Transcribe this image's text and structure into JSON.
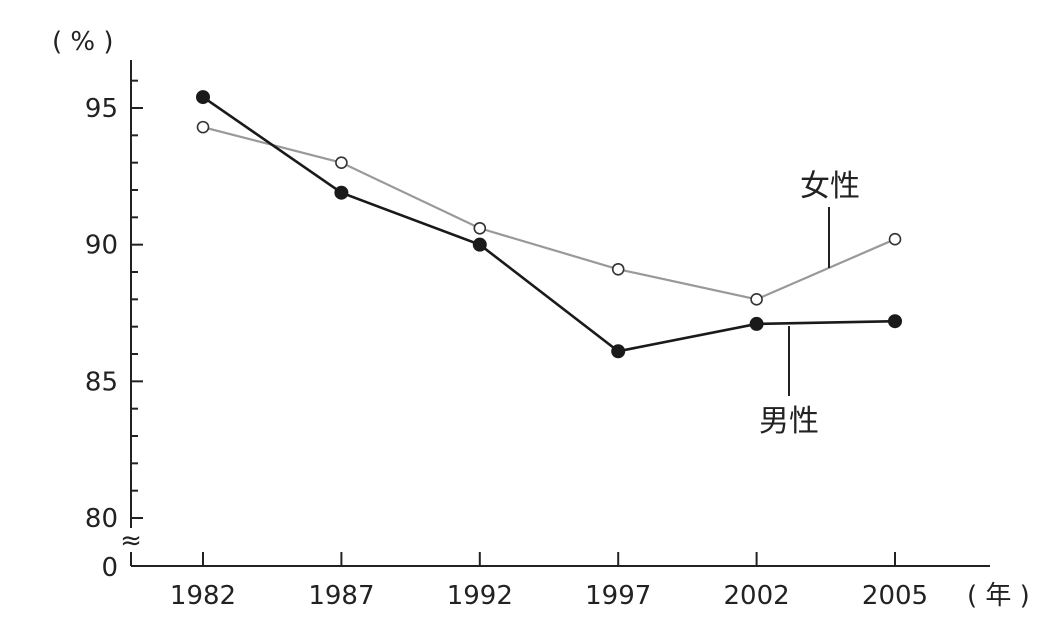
{
  "chart_data": {
    "type": "line",
    "x": [
      "1982",
      "1987",
      "1992",
      "1997",
      "2002",
      "2005"
    ],
    "y_unit_label": "( % )",
    "x_unit_label": "( 年 )",
    "ylim": [
      80,
      97
    ],
    "y_ticks": [
      "95",
      "90",
      "85",
      "80"
    ],
    "y_tick_values": [
      95,
      90,
      85,
      80
    ],
    "y_zero_label": "0",
    "axis_break_symbol": "≈",
    "grid": false,
    "series": [
      {
        "name": "男性",
        "values": [
          95.4,
          91.9,
          90.0,
          86.1,
          87.1,
          87.2
        ],
        "marker": "filled-circle",
        "color": "#1a1a1a"
      },
      {
        "name": "女性",
        "values": [
          94.3,
          93.0,
          90.6,
          89.1,
          88.0,
          90.2
        ],
        "marker": "open-circle",
        "color": "#999999"
      }
    ]
  }
}
